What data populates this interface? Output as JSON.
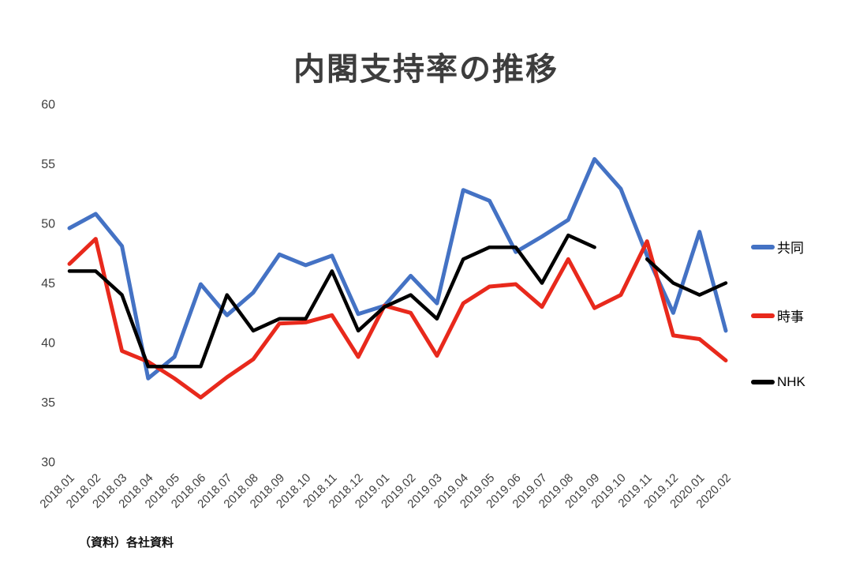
{
  "title": "内閣支持率の推移",
  "footnote": "（資料）各社資料",
  "chart_data": {
    "type": "line",
    "title": "内閣支持率の推移",
    "xlabel": "",
    "ylabel": "",
    "ylim": [
      30,
      60
    ],
    "yticks": [
      60,
      55,
      50,
      45,
      40,
      35,
      30
    ],
    "grid": false,
    "legend_position": "right",
    "categories": [
      "2018.01",
      "2018.02",
      "2018.03",
      "2018.04",
      "2018.05",
      "2018.06",
      "2018.07",
      "2018.08",
      "2018.09",
      "2018.10",
      "2018.11",
      "2018.12",
      "2019.01",
      "2019.02",
      "2019.03",
      "2019.04",
      "2019.05",
      "2019.06",
      "2019.07",
      "2019.08",
      "2019.09",
      "2019.10",
      "2019.11",
      "2019.12",
      "2020.01",
      "2020.02"
    ],
    "series": [
      {
        "name": "共同",
        "id": "kyodo",
        "color": "#4472c4",
        "width": 5,
        "values": [
          49.6,
          50.8,
          48.1,
          37.0,
          38.8,
          44.9,
          42.3,
          44.2,
          47.4,
          46.5,
          47.3,
          42.4,
          43.1,
          45.6,
          43.3,
          52.8,
          51.9,
          47.6,
          48.9,
          50.3,
          55.4,
          52.9,
          47.3,
          42.5,
          49.3,
          41.0
        ]
      },
      {
        "name": "時事",
        "id": "jiji",
        "color": "#e8291c",
        "width": 5,
        "values": [
          46.6,
          48.7,
          39.3,
          38.4,
          37.0,
          35.4,
          37.1,
          38.6,
          41.6,
          41.7,
          42.3,
          38.8,
          43.1,
          42.5,
          38.9,
          43.3,
          44.7,
          44.9,
          43.0,
          47.0,
          42.9,
          44.0,
          48.5,
          40.6,
          40.3,
          38.5
        ]
      },
      {
        "name": "NHK",
        "id": "nhk",
        "color": "#000000",
        "width": 4.5,
        "values": [
          46,
          46,
          44,
          38,
          38,
          38,
          44,
          41,
          42,
          42,
          46,
          41,
          43,
          44,
          42,
          47,
          48,
          48,
          45,
          49,
          48,
          null,
          47,
          45,
          44,
          45
        ]
      }
    ]
  }
}
